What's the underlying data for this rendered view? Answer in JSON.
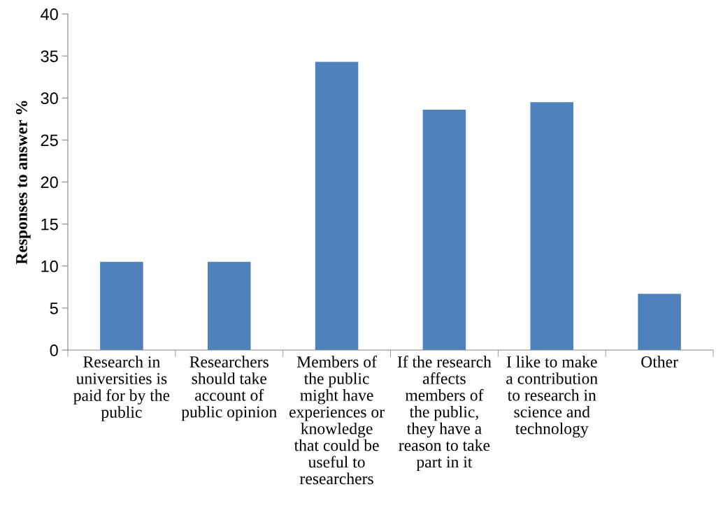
{
  "chart_data": {
    "type": "bar",
    "ylabel": "Responses to answer %",
    "categories": [
      "Research in\nuniversities is\npaid for by the\npublic",
      "Researchers\nshould take\naccount of\npublic opinion",
      "Members of\nthe public\nmight have\nexperiences or\nknowledge\nthat could be\nuseful to\nresearchers",
      "If the research\naffects\nmembers of\nthe public,\nthey have a\nreason to take\npart in it",
      "I like to make\na contribution\nto research in\nscience and\ntechnology",
      "Other"
    ],
    "values": [
      10.5,
      10.5,
      34.3,
      28.6,
      29.5,
      6.7
    ],
    "color": "#4f81bd",
    "ylim": [
      0,
      40
    ],
    "yticks": [
      0,
      5,
      10,
      15,
      20,
      25,
      30,
      35,
      40
    ],
    "grid": false,
    "legend": false
  }
}
